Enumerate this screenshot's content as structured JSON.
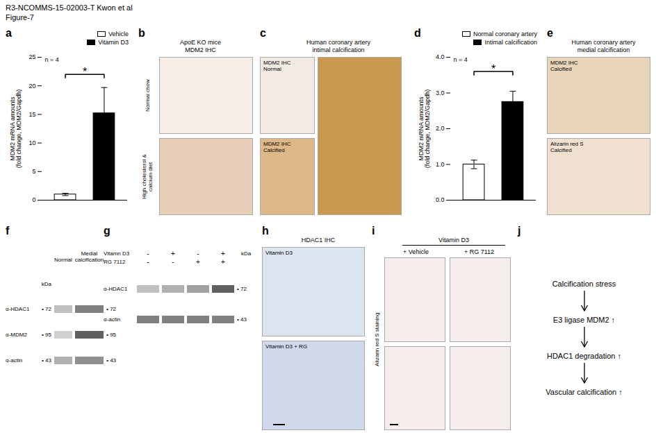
{
  "title": "R3-NCOMMS-15-02003-T Kwon et al",
  "subtitle": "Figure-7",
  "chart_data": [
    {
      "type": "bar",
      "title": "a",
      "categories": [
        "Vehicle",
        "Vitamin D3"
      ],
      "values": [
        1.0,
        15.2
      ],
      "errors": [
        0.2,
        4.5
      ],
      "colors": [
        "white",
        "black"
      ],
      "ylabel": "MDM2 mRNA amounts\n(fold change, MDM2/Gapdh)",
      "ylim": [
        0,
        25
      ],
      "yticks": [
        0,
        5,
        10,
        15,
        20,
        25
      ],
      "legend": "top-right",
      "tick_labels": "y",
      "annotations": [
        "n = 4"
      ],
      "significance": {
        "label": "*",
        "y": 22
      }
    },
    {
      "type": "image",
      "title": "b",
      "subtitle": "ApoE KO mice\nMDM2 IHC",
      "row_labels": [
        "Normal chow",
        "High cholesterol &\ncalcium diet"
      ],
      "colors": [
        "#f5ede6",
        "#e8d0b8"
      ]
    },
    {
      "type": "image",
      "title": "c",
      "subtitle": "Human coronary artery\nintimal calcification",
      "categories": [
        "MDM2 IHC\nNormal",
        "MDM2 IHC\nCalcified",
        null
      ],
      "colors": [
        "#f2ebe4",
        "#ddb98a",
        "#c9984e"
      ]
    },
    {
      "type": "bar",
      "title": "d",
      "categories": [
        "Normal coronary artery",
        "Intimal calcification"
      ],
      "values": [
        1.0,
        2.75
      ],
      "errors": [
        0.12,
        0.3
      ],
      "colors": [
        "white",
        "black"
      ],
      "ylabel": "MDM2 mRNA amounts\n(fold change, MDM2/Gapdh)",
      "ylim": [
        0,
        4
      ],
      "yticks": [
        0,
        1,
        2,
        3,
        4
      ],
      "legend": "top-right",
      "tick_labels": "y",
      "annotations": [
        "n = 4"
      ],
      "significance": {
        "label": "*",
        "y": 3.6
      }
    },
    {
      "type": "image",
      "title": "e",
      "subtitle": "Human coronary artery\nmedial calcification",
      "categories": [
        "MDM2 IHC\nCalcified",
        "Alizarin red S\nCalcified"
      ],
      "colors": [
        "#e8d4b8",
        "#f0e0d0"
      ]
    },
    {
      "type": "blot",
      "title": "f",
      "columns": [
        "Normal",
        "Medial\ncalcification"
      ],
      "rows": [
        "α-HDAC1",
        "α-MDM2",
        "α-actin"
      ],
      "markers_left": [
        "• 72",
        "• 95",
        "• 43"
      ],
      "markers": [
        "• 72",
        "• 95",
        "• 43"
      ],
      "marker_title": "kDa",
      "cells": [
        [
          "#c0c0c0",
          "#808080"
        ],
        [
          "#d0d0d0",
          "#606060"
        ],
        [
          "#b0b0b0",
          "#909090"
        ]
      ]
    },
    {
      "type": "blot",
      "title": "g",
      "treatments": [
        {
          "name": "Vitamn D3",
          "signs": [
            "-",
            "+",
            "-",
            "+"
          ]
        },
        {
          "name": "RG 7112",
          "signs": [
            "-",
            "-",
            "+",
            "+"
          ]
        }
      ],
      "rows": [
        "α-HDAC1",
        "α-actin"
      ],
      "markers": [
        "• 72",
        "• 43"
      ],
      "marker_title": "kDa",
      "cells": [
        [
          "#c0c0c0",
          "#b0b0b0",
          "#a0a0a0",
          "#606060"
        ],
        [
          "#808080",
          "#808080",
          "#808080",
          "#808080"
        ]
      ]
    },
    {
      "type": "image",
      "title": "h",
      "subtitle": "HDAC1 IHC",
      "categories": [
        "Vitamin D3",
        "Vitamin D3 + RG"
      ],
      "colors": [
        "#dce4f0",
        "#d0d8ec"
      ]
    },
    {
      "type": "image_grid",
      "title": "i",
      "subtitle": "Vitamin D3",
      "categories": [
        "+ Vehicle",
        "+ RG 7112"
      ],
      "ylabel": "Alizarin red S staining",
      "color": "#f5eeec"
    },
    {
      "type": "flow",
      "title": "j",
      "steps": [
        "Calcification stress",
        "E3 ligase MDM2 ↑",
        "HDAC1 degradation ↑",
        "Vascular calcification ↑"
      ]
    }
  ]
}
